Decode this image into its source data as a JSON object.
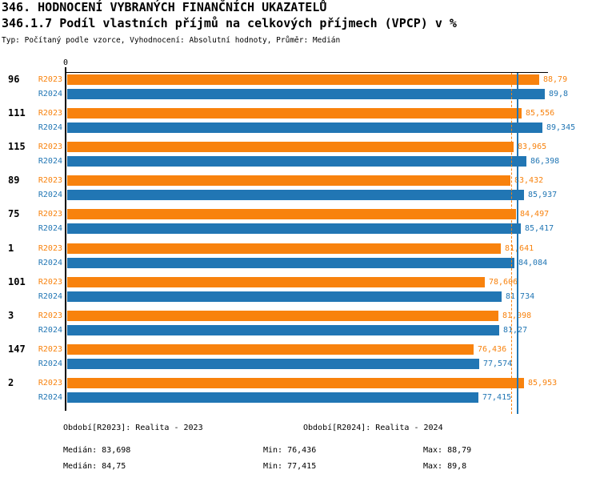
{
  "header": {
    "title": "346. HODNOCENÍ VYBRANÝCH FINANČNÍCH UKAZATELŮ",
    "subtitle": "346.1.7 Podíl vlastních příjmů na celkových příjmech (VPCP) v %",
    "meta": "Typ: Počítaný podle vzorce, Vyhodnocení: Absolutní hodnoty, Průměr: Medián"
  },
  "colors": {
    "r2023_orange": "#F8820D",
    "r2024_blue": "#2176B4",
    "axis_black": "#000000"
  },
  "chart_data": {
    "type": "bar",
    "orientation": "horizontal",
    "title": "346.1.7 Podíl vlastních příjmů na celkových příjmech (VPCP) v %",
    "xlabel": "",
    "ylabel": "",
    "xlim": [
      0,
      90
    ],
    "zero_tick_label": "0",
    "grid": false,
    "legend_position": "bottom",
    "categories": [
      "96",
      "111",
      "115",
      "89",
      "75",
      "1",
      "101",
      "3",
      "147",
      "2"
    ],
    "series": [
      {
        "name": "R2023",
        "legend": "Období[R2023]: Realita - 2023",
        "color": "#F8820D",
        "values": [
          88.79,
          85.556,
          83.965,
          83.432,
          84.497,
          81.641,
          78.606,
          81.098,
          76.436,
          85.953
        ],
        "labels": [
          "88,79",
          "85,556",
          "83,965",
          "83,432",
          "84,497",
          "81,641",
          "78,606",
          "81,098",
          "76,436",
          "85,953"
        ],
        "median": 83.698,
        "median_line_style": "dashed"
      },
      {
        "name": "R2024",
        "legend": "Období[R2024]: Realita - 2024",
        "color": "#2176B4",
        "values": [
          89.8,
          89.345,
          86.398,
          85.937,
          85.417,
          84.084,
          81.734,
          81.27,
          77.574,
          77.415
        ],
        "labels": [
          "89,8",
          "89,345",
          "86,398",
          "85,937",
          "85,417",
          "84,084",
          "81,734",
          "81,27",
          "77,574",
          "77,415"
        ],
        "median": 84.75,
        "median_line_style": "solid"
      }
    ]
  },
  "legend": {
    "r2023": "Období[R2023]: Realita - 2023",
    "r2024": "Období[R2024]: Realita - 2024"
  },
  "stats": {
    "r2023": {
      "median_label": "Medián: 83,698",
      "min_label": "Min: 76,436",
      "max_label": "Max: 88,79"
    },
    "r2024": {
      "median_label": "Medián: 84,75",
      "min_label": "Min: 77,415",
      "max_label": "Max: 89,8"
    }
  }
}
